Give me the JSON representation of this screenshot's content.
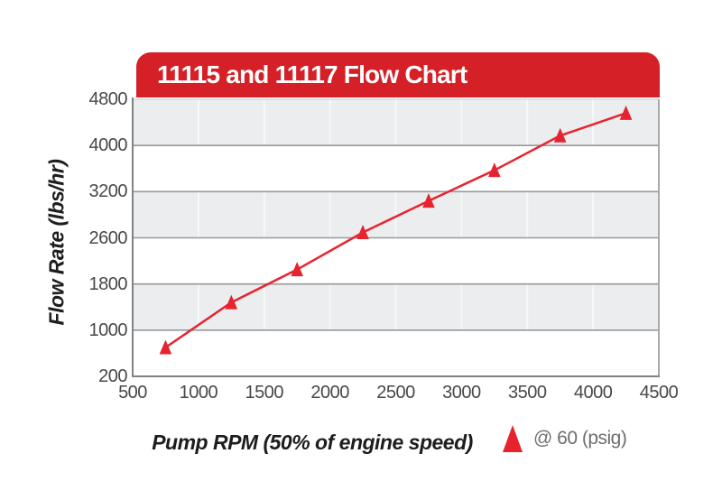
{
  "colors": {
    "banner_red": "#d52027",
    "line_red": "#e8232f",
    "marker_red": "#e6232e",
    "band_gray": "#ebedee",
    "h_gridline": "#97999c",
    "v_gridline_on_band": "#f7f8f9",
    "axis_line": "#808285",
    "right_border": "#a7a9ac",
    "top_border": "#d0d2d4",
    "tick_text": "#48484a",
    "legend_text": "#6d6e71",
    "title_text": "#ffffff"
  },
  "chart_data": {
    "type": "line",
    "title": "11115 and 11117 Flow Chart",
    "xlabel": "Pump RPM (50% of engine speed)",
    "ylabel": "Flow Rate (lbs/hr)",
    "xlim": [
      500,
      4500
    ],
    "x_ticks": [
      500,
      1000,
      1500,
      2000,
      2500,
      3000,
      3500,
      4000,
      4500
    ],
    "y_ticks": [
      200,
      1000,
      1800,
      2600,
      3200,
      4000,
      4800
    ],
    "y_axis_style": "tick labels evenly spaced on axis as printed (non-linear value scale)",
    "grid": "horizontal gridlines at every y tick; alternating gray bands 1000-1800, 2600-3200, 4000-4800",
    "legend_position": "below chart, right of x-axis title",
    "series": [
      {
        "name": "@ 60 (psig)",
        "marker": "triangle-up",
        "color": "#e6232e",
        "x": [
          750,
          1250,
          1750,
          2250,
          2750,
          3250,
          3750,
          4250
        ],
        "y": [
          700,
          1480,
          2050,
          2670,
          3080,
          3570,
          4170,
          4560
        ]
      }
    ]
  }
}
